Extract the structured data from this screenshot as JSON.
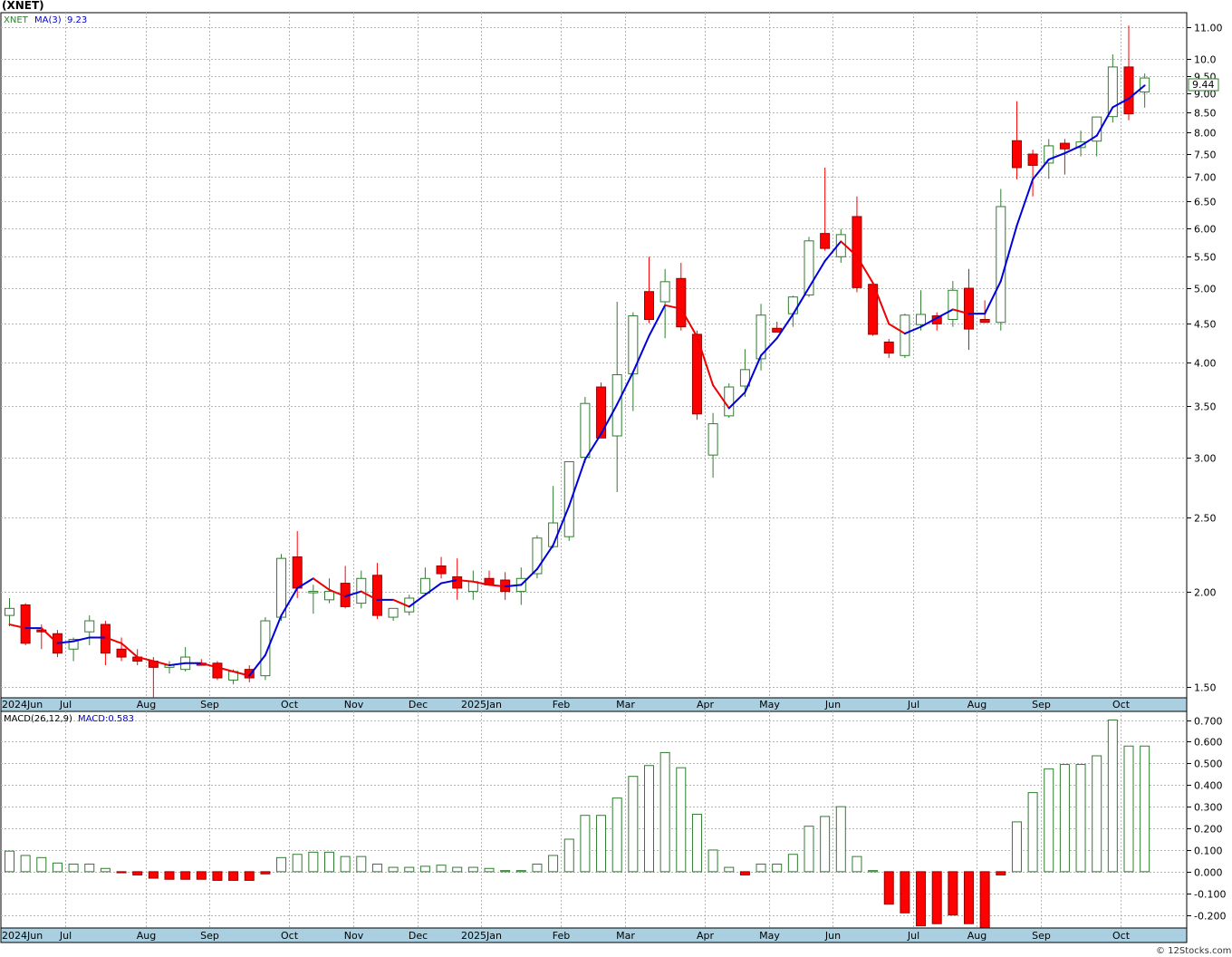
{
  "chart_title": "(XNET)",
  "legend": {
    "symbol": "XNET",
    "ma_label": "MA(3)",
    "ma_value": "9.23"
  },
  "last_price_label": "9.44",
  "macd_legend": {
    "label": "MACD(26,12,9)",
    "value_label": "MACD:0.583"
  },
  "footer": "© 12Stocks.com",
  "colors": {
    "up": "#2f7d2f",
    "down": "#ff0000",
    "ma_up": "#0000dd",
    "ma_down": "#ee0000",
    "grid": "#b4b4b4",
    "strip": "#a9cfe1"
  },
  "chart_data": [
    {
      "type": "candlestick",
      "scale": "log",
      "ylim": [
        1.45,
        11.5
      ],
      "yticks": [
        "1.50",
        "2.00",
        "2.50",
        "3.00",
        "3.50",
        "4.00",
        "4.50",
        "5.00",
        "5.50",
        "6.00",
        "6.50",
        "7.00",
        "7.50",
        "8.00",
        "8.50",
        "9.00",
        "9.50",
        "10.0",
        "11.00"
      ],
      "month_labels": [
        "2024Jun",
        "Jul",
        "Aug",
        "Sep",
        "Oct",
        "Nov",
        "Dec",
        "2025Jan",
        "Feb",
        "Mar",
        "Apr",
        "May",
        "Jun",
        "Jul",
        "Aug",
        "Sep",
        "Oct"
      ],
      "month_start_index": [
        0,
        4,
        9,
        13,
        18,
        22,
        26,
        30,
        35,
        39,
        44,
        48,
        52,
        57,
        61,
        65,
        70
      ],
      "grid": true,
      "series": [
        {
          "name": "XNET",
          "ohlc": [
            [
              1.86,
              1.96,
              1.8,
              1.9
            ],
            [
              1.92,
              1.93,
              1.7,
              1.71
            ],
            [
              1.78,
              1.81,
              1.68,
              1.77
            ],
            [
              1.76,
              1.78,
              1.64,
              1.66
            ],
            [
              1.68,
              1.74,
              1.62,
              1.73
            ],
            [
              1.77,
              1.86,
              1.7,
              1.83
            ],
            [
              1.81,
              1.83,
              1.6,
              1.66
            ],
            [
              1.68,
              1.74,
              1.62,
              1.64
            ],
            [
              1.64,
              1.68,
              1.6,
              1.62
            ],
            [
              1.62,
              1.64,
              1.45,
              1.59
            ],
            [
              1.59,
              1.62,
              1.56,
              1.6
            ],
            [
              1.58,
              1.69,
              1.57,
              1.64
            ],
            [
              1.61,
              1.63,
              1.6,
              1.6
            ],
            [
              1.61,
              1.62,
              1.53,
              1.54
            ],
            [
              1.53,
              1.58,
              1.51,
              1.57
            ],
            [
              1.58,
              1.6,
              1.52,
              1.54
            ],
            [
              1.55,
              1.85,
              1.53,
              1.83
            ],
            [
              1.85,
              2.24,
              1.83,
              2.21
            ],
            [
              2.22,
              2.4,
              1.96,
              2.02
            ],
            [
              2.0,
              2.04,
              1.87,
              2.0
            ],
            [
              1.95,
              2.08,
              1.93,
              2.0
            ],
            [
              2.05,
              2.16,
              1.9,
              1.91
            ],
            [
              1.93,
              2.13,
              1.9,
              2.08
            ],
            [
              2.1,
              2.18,
              1.84,
              1.86
            ],
            [
              1.85,
              1.9,
              1.83,
              1.9
            ],
            [
              1.88,
              1.98,
              1.86,
              1.96
            ],
            [
              1.99,
              2.15,
              1.98,
              2.08
            ],
            [
              2.16,
              2.22,
              2.08,
              2.11
            ],
            [
              2.09,
              2.21,
              1.95,
              2.02
            ],
            [
              2.0,
              2.13,
              1.95,
              2.06
            ],
            [
              2.08,
              2.13,
              2.05,
              2.04
            ],
            [
              2.07,
              2.12,
              1.95,
              2.0
            ],
            [
              2.0,
              2.15,
              1.92,
              2.08
            ],
            [
              2.11,
              2.37,
              2.08,
              2.35
            ],
            [
              2.29,
              2.75,
              2.28,
              2.46
            ],
            [
              2.36,
              2.96,
              2.33,
              2.96
            ],
            [
              3.0,
              3.6,
              2.95,
              3.53
            ],
            [
              3.71,
              3.76,
              3.19,
              3.18
            ],
            [
              3.2,
              4.8,
              2.7,
              3.85
            ],
            [
              3.86,
              4.65,
              3.45,
              4.6
            ],
            [
              4.95,
              5.5,
              4.5,
              4.55
            ],
            [
              4.8,
              5.3,
              4.3,
              5.1
            ],
            [
              5.15,
              5.4,
              4.4,
              4.45
            ],
            [
              4.35,
              4.4,
              3.36,
              3.42
            ],
            [
              3.02,
              3.43,
              2.82,
              3.32
            ],
            [
              3.4,
              3.75,
              3.38,
              3.71
            ],
            [
              3.72,
              4.16,
              3.6,
              3.91
            ],
            [
              4.04,
              4.77,
              3.9,
              4.61
            ],
            [
              4.43,
              4.52,
              4.39,
              4.38
            ],
            [
              4.63,
              4.89,
              4.45,
              4.87
            ],
            [
              4.9,
              5.84,
              4.87,
              5.77
            ],
            [
              5.9,
              7.2,
              5.6,
              5.64
            ],
            [
              5.5,
              5.98,
              5.4,
              5.88
            ],
            [
              6.21,
              6.6,
              4.94,
              5.01
            ],
            [
              5.06,
              5.08,
              4.33,
              4.35
            ],
            [
              4.25,
              4.29,
              4.05,
              4.11
            ],
            [
              4.08,
              4.63,
              4.05,
              4.61
            ],
            [
              4.48,
              4.97,
              4.4,
              4.62
            ],
            [
              4.6,
              4.65,
              4.4,
              4.49
            ],
            [
              4.55,
              5.11,
              4.45,
              4.97
            ],
            [
              5.0,
              5.3,
              4.15,
              4.42
            ],
            [
              4.55,
              4.82,
              4.5,
              4.51
            ],
            [
              4.51,
              6.75,
              4.4,
              6.4
            ],
            [
              7.81,
              8.8,
              6.95,
              7.2
            ],
            [
              7.5,
              7.6,
              6.6,
              7.25
            ],
            [
              7.3,
              7.85,
              6.96,
              7.69
            ],
            [
              7.75,
              7.85,
              7.05,
              7.62
            ],
            [
              7.65,
              8.05,
              7.45,
              7.78
            ],
            [
              7.8,
              8.4,
              7.45,
              8.39
            ],
            [
              8.4,
              10.14,
              8.25,
              9.76
            ],
            [
              9.76,
              11.06,
              8.31,
              8.47
            ],
            [
              9.05,
              9.57,
              8.63,
              9.44
            ]
          ]
        },
        {
          "name": "MA(3)",
          "values": [
            1.81,
            1.79,
            1.79,
            1.71,
            1.72,
            1.74,
            1.74,
            1.71,
            1.64,
            1.62,
            1.6,
            1.61,
            1.61,
            1.59,
            1.57,
            1.55,
            1.65,
            1.86,
            2.02,
            2.08,
            2.01,
            1.97,
            2.0,
            1.95,
            1.95,
            1.91,
            1.98,
            2.05,
            2.07,
            2.06,
            2.04,
            2.03,
            2.04,
            2.14,
            2.3,
            2.59,
            2.98,
            3.22,
            3.52,
            3.88,
            4.33,
            4.75,
            4.7,
            4.32,
            3.73,
            3.48,
            3.65,
            4.08,
            4.3,
            4.62,
            5.01,
            5.43,
            5.76,
            5.51,
            5.08,
            4.49,
            4.36,
            4.45,
            4.57,
            4.69,
            4.63,
            4.63,
            5.11,
            6.04,
            6.95,
            7.38,
            7.52,
            7.69,
            7.93,
            8.64,
            8.87,
            9.23
          ]
        }
      ]
    },
    {
      "type": "bar",
      "name": "MACD histogram",
      "ylim": [
        -0.26,
        0.74
      ],
      "yticks": [
        "0.700",
        "0.600",
        "0.500",
        "0.400",
        "0.300",
        "0.200",
        "0.100",
        "0.000",
        "-0.100",
        "-0.200"
      ],
      "month_labels": [
        "2024Jun",
        "Jul",
        "Aug",
        "Sep",
        "Oct",
        "Nov",
        "Dec",
        "2025Jan",
        "Feb",
        "Mar",
        "Apr",
        "May",
        "Jun",
        "Jul",
        "Aug",
        "Sep",
        "Oct"
      ],
      "values": [
        0.095,
        0.075,
        0.065,
        0.04,
        0.035,
        0.035,
        0.015,
        -0.005,
        -0.015,
        -0.03,
        -0.035,
        -0.035,
        -0.035,
        -0.04,
        -0.04,
        -0.04,
        -0.01,
        0.065,
        0.08,
        0.09,
        0.09,
        0.07,
        0.07,
        0.035,
        0.02,
        0.02,
        0.025,
        0.03,
        0.02,
        0.02,
        0.015,
        0.005,
        0.005,
        0.035,
        0.075,
        0.15,
        0.26,
        0.26,
        0.34,
        0.44,
        0.49,
        0.55,
        0.48,
        0.265,
        0.1,
        0.02,
        -0.015,
        0.035,
        0.035,
        0.08,
        0.21,
        0.255,
        0.3,
        0.07,
        0.005,
        -0.15,
        -0.19,
        -0.25,
        -0.24,
        -0.2,
        -0.24,
        -0.26,
        -0.015,
        0.23,
        0.365,
        0.475,
        0.495,
        0.495,
        0.535,
        0.7,
        0.58,
        0.58
      ]
    }
  ]
}
